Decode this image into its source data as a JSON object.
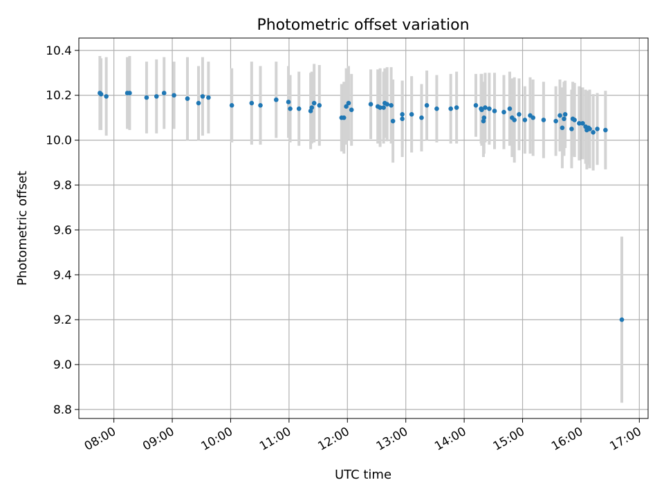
{
  "chart_data": {
    "type": "scatter",
    "title": "Photometric offset variation",
    "xlabel": "UTC time",
    "ylabel": "Photometric offset",
    "xlim_hours": [
      7.4,
      17.15
    ],
    "ylim": [
      8.76,
      10.455
    ],
    "grid": true,
    "colors": {
      "point": "#1f77b4",
      "errorbar": "#d3d3d3",
      "grid": "#b0b0b0"
    },
    "x_ticks": [
      {
        "hour": 8,
        "label": "08:00"
      },
      {
        "hour": 9,
        "label": "09:00"
      },
      {
        "hour": 10,
        "label": "10:00"
      },
      {
        "hour": 11,
        "label": "11:00"
      },
      {
        "hour": 12,
        "label": "12:00"
      },
      {
        "hour": 13,
        "label": "13:00"
      },
      {
        "hour": 14,
        "label": "14:00"
      },
      {
        "hour": 15,
        "label": "15:00"
      },
      {
        "hour": 16,
        "label": "16:00"
      },
      {
        "hour": 17,
        "label": "17:00"
      }
    ],
    "y_ticks": [
      {
        "value": 8.8,
        "label": "8.8"
      },
      {
        "value": 9.0,
        "label": "9.0"
      },
      {
        "value": 9.2,
        "label": "9.2"
      },
      {
        "value": 9.4,
        "label": "9.4"
      },
      {
        "value": 9.6,
        "label": "9.6"
      },
      {
        "value": 9.8,
        "label": "9.8"
      },
      {
        "value": 10.0,
        "label": "10.0"
      },
      {
        "value": 10.2,
        "label": "10.2"
      },
      {
        "value": 10.4,
        "label": "10.4"
      }
    ],
    "points": [
      {
        "t": 7.76,
        "y": 10.21,
        "err": 0.165
      },
      {
        "t": 7.78,
        "y": 10.205,
        "err": 0.16
      },
      {
        "t": 7.87,
        "y": 10.195,
        "err": 0.175
      },
      {
        "t": 8.23,
        "y": 10.21,
        "err": 0.16
      },
      {
        "t": 8.27,
        "y": 10.21,
        "err": 0.165
      },
      {
        "t": 8.56,
        "y": 10.19,
        "err": 0.16
      },
      {
        "t": 8.73,
        "y": 10.195,
        "err": 0.165
      },
      {
        "t": 8.86,
        "y": 10.21,
        "err": 0.16
      },
      {
        "t": 9.03,
        "y": 10.2,
        "err": 0.15
      },
      {
        "t": 9.26,
        "y": 10.185,
        "err": 0.185
      },
      {
        "t": 9.45,
        "y": 10.165,
        "err": 0.165
      },
      {
        "t": 9.52,
        "y": 10.195,
        "err": 0.175
      },
      {
        "t": 9.62,
        "y": 10.19,
        "err": 0.16
      },
      {
        "t": 10.02,
        "y": 10.155,
        "err": 0.165
      },
      {
        "t": 10.36,
        "y": 10.165,
        "err": 0.185
      },
      {
        "t": 10.51,
        "y": 10.155,
        "err": 0.175
      },
      {
        "t": 10.78,
        "y": 10.18,
        "err": 0.17
      },
      {
        "t": 10.99,
        "y": 10.17,
        "err": 0.16
      },
      {
        "t": 11.02,
        "y": 10.14,
        "err": 0.15
      },
      {
        "t": 11.17,
        "y": 10.14,
        "err": 0.165
      },
      {
        "t": 11.37,
        "y": 10.13,
        "err": 0.17
      },
      {
        "t": 11.39,
        "y": 10.145,
        "err": 0.16
      },
      {
        "t": 11.43,
        "y": 10.165,
        "err": 0.175
      },
      {
        "t": 11.52,
        "y": 10.155,
        "err": 0.18
      },
      {
        "t": 11.9,
        "y": 10.1,
        "err": 0.15
      },
      {
        "t": 11.94,
        "y": 10.1,
        "err": 0.16
      },
      {
        "t": 11.98,
        "y": 10.15,
        "err": 0.17
      },
      {
        "t": 12.02,
        "y": 10.165,
        "err": 0.165
      },
      {
        "t": 12.07,
        "y": 10.135,
        "err": 0.16
      },
      {
        "t": 12.4,
        "y": 10.16,
        "err": 0.155
      },
      {
        "t": 12.52,
        "y": 10.15,
        "err": 0.165
      },
      {
        "t": 12.56,
        "y": 10.145,
        "err": 0.175
      },
      {
        "t": 12.62,
        "y": 10.145,
        "err": 0.16
      },
      {
        "t": 12.64,
        "y": 10.165,
        "err": 0.155
      },
      {
        "t": 12.68,
        "y": 10.16,
        "err": 0.165
      },
      {
        "t": 12.75,
        "y": 10.155,
        "err": 0.17
      },
      {
        "t": 12.78,
        "y": 10.085,
        "err": 0.185
      },
      {
        "t": 12.94,
        "y": 10.115,
        "err": 0.15
      },
      {
        "t": 12.94,
        "y": 10.095,
        "err": 0.17
      },
      {
        "t": 13.1,
        "y": 10.115,
        "err": 0.17
      },
      {
        "t": 13.27,
        "y": 10.1,
        "err": 0.15
      },
      {
        "t": 13.36,
        "y": 10.155,
        "err": 0.155
      },
      {
        "t": 13.53,
        "y": 10.14,
        "err": 0.15
      },
      {
        "t": 13.77,
        "y": 10.14,
        "err": 0.155
      },
      {
        "t": 13.87,
        "y": 10.145,
        "err": 0.16
      },
      {
        "t": 14.2,
        "y": 10.155,
        "err": 0.14
      },
      {
        "t": 14.29,
        "y": 10.14,
        "err": 0.155
      },
      {
        "t": 14.3,
        "y": 10.135,
        "err": 0.16
      },
      {
        "t": 14.33,
        "y": 10.085,
        "err": 0.16
      },
      {
        "t": 14.34,
        "y": 10.1,
        "err": 0.16
      },
      {
        "t": 14.36,
        "y": 10.145,
        "err": 0.155
      },
      {
        "t": 14.43,
        "y": 10.14,
        "err": 0.16
      },
      {
        "t": 14.52,
        "y": 10.13,
        "err": 0.17
      },
      {
        "t": 14.68,
        "y": 10.125,
        "err": 0.165
      },
      {
        "t": 14.78,
        "y": 10.14,
        "err": 0.165
      },
      {
        "t": 14.82,
        "y": 10.1,
        "err": 0.175
      },
      {
        "t": 14.86,
        "y": 10.09,
        "err": 0.19
      },
      {
        "t": 14.94,
        "y": 10.115,
        "err": 0.16
      },
      {
        "t": 15.04,
        "y": 10.09,
        "err": 0.15
      },
      {
        "t": 15.13,
        "y": 10.11,
        "err": 0.17
      },
      {
        "t": 15.18,
        "y": 10.1,
        "err": 0.17
      },
      {
        "t": 15.36,
        "y": 10.09,
        "err": 0.17
      },
      {
        "t": 15.57,
        "y": 10.085,
        "err": 0.155
      },
      {
        "t": 15.64,
        "y": 10.11,
        "err": 0.16
      },
      {
        "t": 15.68,
        "y": 10.055,
        "err": 0.18
      },
      {
        "t": 15.71,
        "y": 10.095,
        "err": 0.165
      },
      {
        "t": 15.73,
        "y": 10.115,
        "err": 0.15
      },
      {
        "t": 15.84,
        "y": 10.05,
        "err": 0.175
      },
      {
        "t": 15.86,
        "y": 10.095,
        "err": 0.165
      },
      {
        "t": 15.89,
        "y": 10.09,
        "err": 0.165
      },
      {
        "t": 15.97,
        "y": 10.075,
        "err": 0.165
      },
      {
        "t": 16.03,
        "y": 10.075,
        "err": 0.16
      },
      {
        "t": 16.08,
        "y": 10.06,
        "err": 0.165
      },
      {
        "t": 16.1,
        "y": 10.045,
        "err": 0.175
      },
      {
        "t": 16.13,
        "y": 10.055,
        "err": 0.165
      },
      {
        "t": 16.15,
        "y": 10.05,
        "err": 0.175
      },
      {
        "t": 16.21,
        "y": 10.035,
        "err": 0.17
      },
      {
        "t": 16.28,
        "y": 10.05,
        "err": 0.16
      },
      {
        "t": 16.42,
        "y": 10.045,
        "err": 0.175
      },
      {
        "t": 16.7,
        "y": 9.2,
        "err": 0.37
      }
    ]
  }
}
